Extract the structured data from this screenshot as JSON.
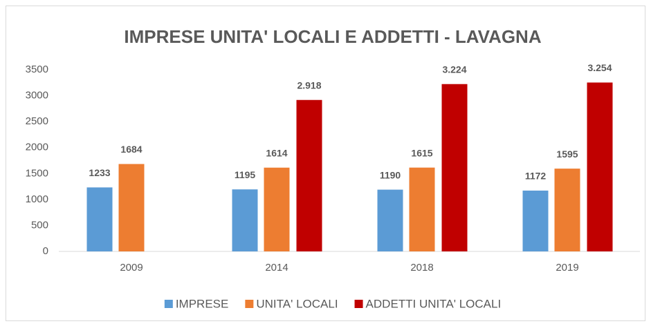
{
  "chart_data": {
    "type": "bar",
    "title": "IMPRESE UNITA' LOCALI E ADDETTI - LAVAGNA",
    "categories": [
      "2009",
      "2014",
      "2018",
      "2019"
    ],
    "series": [
      {
        "name": "IMPRESE",
        "color": "#5b9bd5",
        "values": [
          1233,
          1195,
          1190,
          1172
        ]
      },
      {
        "name": "UNITA' LOCALI",
        "color": "#ed7d31",
        "values": [
          1684,
          1614,
          1615,
          1595
        ]
      },
      {
        "name": "ADDETTI UNITA' LOCALI",
        "color": "#c00000",
        "values": [
          null,
          2918,
          3224,
          3254
        ],
        "value_labels": [
          null,
          "2.918",
          "3.224",
          "3.254"
        ]
      }
    ],
    "ylim": [
      0,
      3500
    ],
    "yticks": [
      0,
      500,
      1000,
      1500,
      2000,
      2500,
      3000,
      3500
    ],
    "grid": false,
    "legend": "bottom"
  }
}
